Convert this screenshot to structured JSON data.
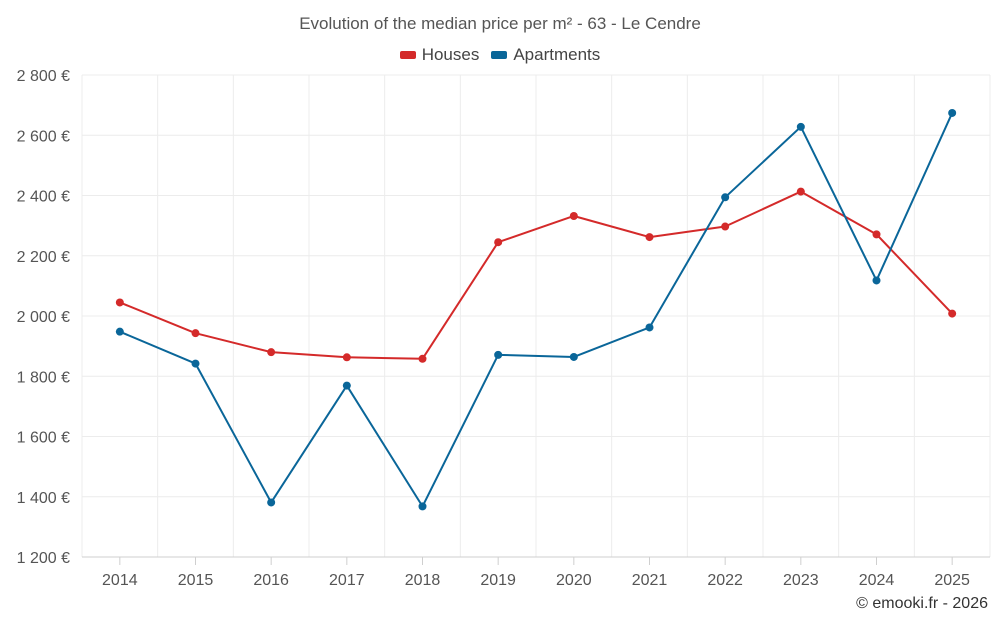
{
  "chart_data": {
    "type": "line",
    "title": "Evolution of the median price per m² - 63 - Le Cendre",
    "xlabel": "",
    "ylabel": "",
    "categories": [
      "2014",
      "2015",
      "2016",
      "2017",
      "2018",
      "2019",
      "2020",
      "2021",
      "2022",
      "2023",
      "2024",
      "2025"
    ],
    "ylim": [
      1200,
      2800
    ],
    "yticks": [
      1200,
      1400,
      1600,
      1800,
      2000,
      2200,
      2400,
      2600,
      2800
    ],
    "ytick_labels": [
      "1 200 €",
      "1 400 €",
      "1 600 €",
      "1 800 €",
      "2 000 €",
      "2 200 €",
      "2 400 €",
      "2 600 €",
      "2 800 €"
    ],
    "grid": true,
    "legend_position": "top-center",
    "series": [
      {
        "name": "Houses",
        "color": "#d42a2a",
        "values": [
          2045,
          1943,
          1880,
          1863,
          1858,
          2245,
          2332,
          2262,
          2297,
          2413,
          2271,
          2008
        ]
      },
      {
        "name": "Apartments",
        "color": "#0a6699",
        "values": [
          1948,
          1842,
          1381,
          1769,
          1368,
          1871,
          1864,
          1962,
          2394,
          2628,
          2118,
          2674
        ]
      }
    ]
  },
  "footer": "© emooki.fr - 2026"
}
